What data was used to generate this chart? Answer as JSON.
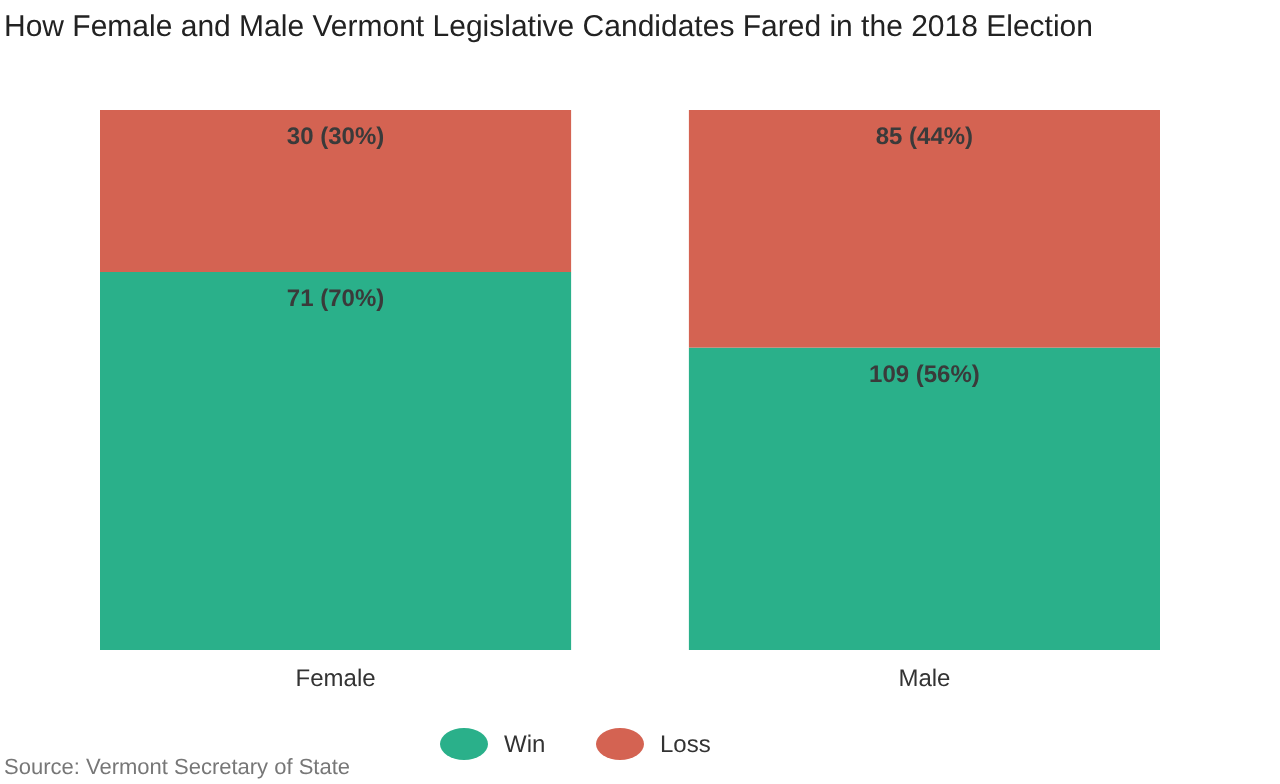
{
  "chart_data": {
    "type": "bar",
    "title": "How Female and Male Vermont Legislative Candidates Fared in the 2018 Election",
    "annotations": [
      "Source: Vermont Secretary of State"
    ],
    "categories": [
      "Female",
      "Male"
    ],
    "stacked": true,
    "ylim": [
      0,
      100
    ],
    "tick_labels": "x",
    "legend": "bottom",
    "grid": false,
    "series": [
      {
        "name": "Win",
        "color": "#2ab08a",
        "values": [
          70,
          56
        ],
        "value_labels": [
          "71 (70%)",
          "109 (56%)"
        ]
      },
      {
        "name": "Loss",
        "color": "#d46352",
        "values": [
          30,
          44
        ],
        "value_labels": [
          "30 (30%)",
          "85 (44%)"
        ]
      }
    ]
  }
}
